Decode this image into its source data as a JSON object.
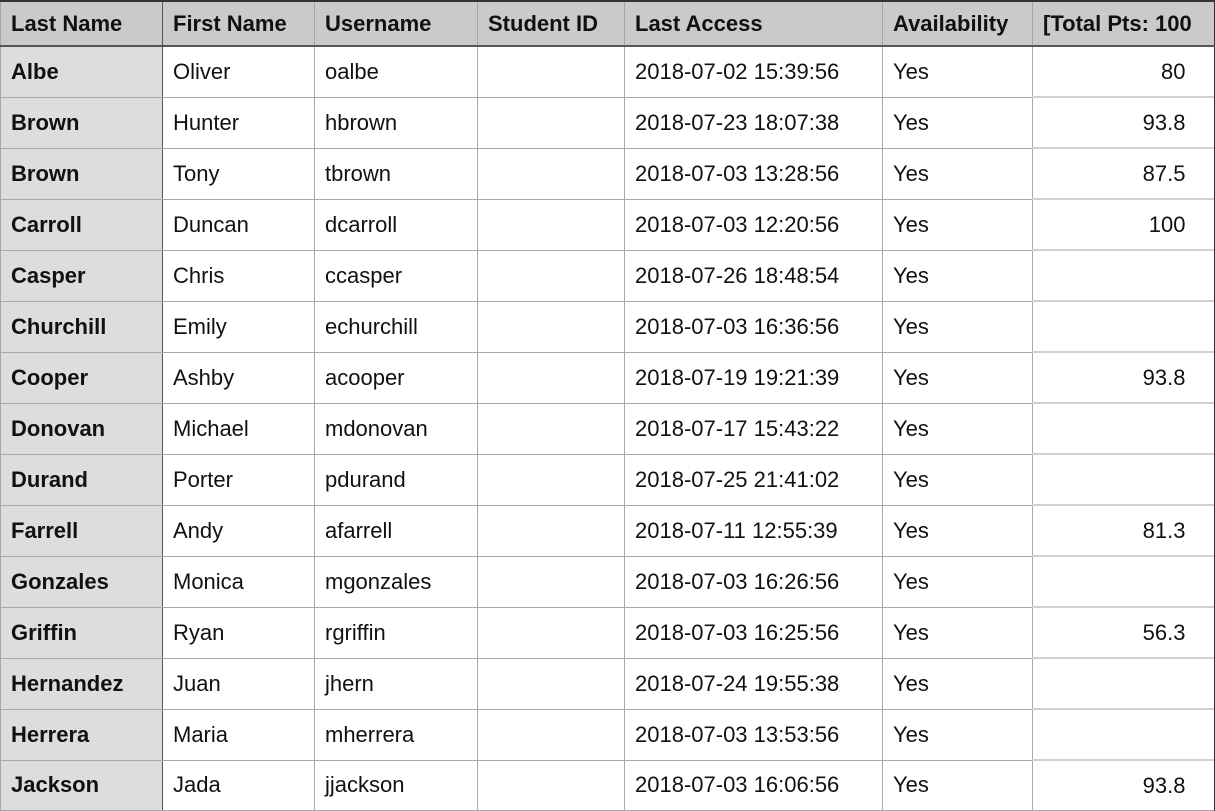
{
  "columns": [
    "Last Name",
    "First Name",
    "Username",
    "Student ID",
    "Last Access",
    "Availability",
    "[Total Pts: 100"
  ],
  "rows": [
    {
      "last": "Albe",
      "first": "Oliver",
      "username": "oalbe",
      "student_id": "",
      "last_access": "2018-07-02 15:39:56",
      "availability": "Yes",
      "points": "80"
    },
    {
      "last": "Brown",
      "first": "Hunter",
      "username": "hbrown",
      "student_id": "",
      "last_access": "2018-07-23 18:07:38",
      "availability": "Yes",
      "points": "93.8"
    },
    {
      "last": "Brown",
      "first": "Tony",
      "username": "tbrown",
      "student_id": "",
      "last_access": "2018-07-03 13:28:56",
      "availability": "Yes",
      "points": "87.5"
    },
    {
      "last": "Carroll",
      "first": "Duncan",
      "username": "dcarroll",
      "student_id": "",
      "last_access": "2018-07-03 12:20:56",
      "availability": "Yes",
      "points": "100"
    },
    {
      "last": "Casper",
      "first": "Chris",
      "username": "ccasper",
      "student_id": "",
      "last_access": "2018-07-26 18:48:54",
      "availability": "Yes",
      "points": ""
    },
    {
      "last": "Churchill",
      "first": "Emily",
      "username": "echurchill",
      "student_id": "",
      "last_access": "2018-07-03 16:36:56",
      "availability": "Yes",
      "points": ""
    },
    {
      "last": "Cooper",
      "first": "Ashby",
      "username": "acooper",
      "student_id": "",
      "last_access": "2018-07-19 19:21:39",
      "availability": "Yes",
      "points": "93.8"
    },
    {
      "last": "Donovan",
      "first": "Michael",
      "username": "mdonovan",
      "student_id": "",
      "last_access": "2018-07-17 15:43:22",
      "availability": "Yes",
      "points": ""
    },
    {
      "last": "Durand",
      "first": "Porter",
      "username": "pdurand",
      "student_id": "",
      "last_access": "2018-07-25 21:41:02",
      "availability": "Yes",
      "points": ""
    },
    {
      "last": "Farrell",
      "first": "Andy",
      "username": "afarrell",
      "student_id": "",
      "last_access": "2018-07-11 12:55:39",
      "availability": "Yes",
      "points": "81.3"
    },
    {
      "last": "Gonzales",
      "first": "Monica",
      "username": "mgonzales",
      "student_id": "",
      "last_access": "2018-07-03 16:26:56",
      "availability": "Yes",
      "points": ""
    },
    {
      "last": "Griffin",
      "first": "Ryan",
      "username": "rgriffin",
      "student_id": "",
      "last_access": "2018-07-03 16:25:56",
      "availability": "Yes",
      "points": "56.3"
    },
    {
      "last": "Hernandez",
      "first": "Juan",
      "username": "jhern",
      "student_id": "",
      "last_access": "2018-07-24 19:55:38",
      "availability": "Yes",
      "points": ""
    },
    {
      "last": "Herrera",
      "first": "Maria",
      "username": "mherrera",
      "student_id": "",
      "last_access": "2018-07-03 13:53:56",
      "availability": "Yes",
      "points": ""
    },
    {
      "last": "Jackson",
      "first": "Jada",
      "username": "jjackson",
      "student_id": "",
      "last_access": "2018-07-03 16:06:56",
      "availability": "Yes",
      "points": "93.8"
    }
  ]
}
